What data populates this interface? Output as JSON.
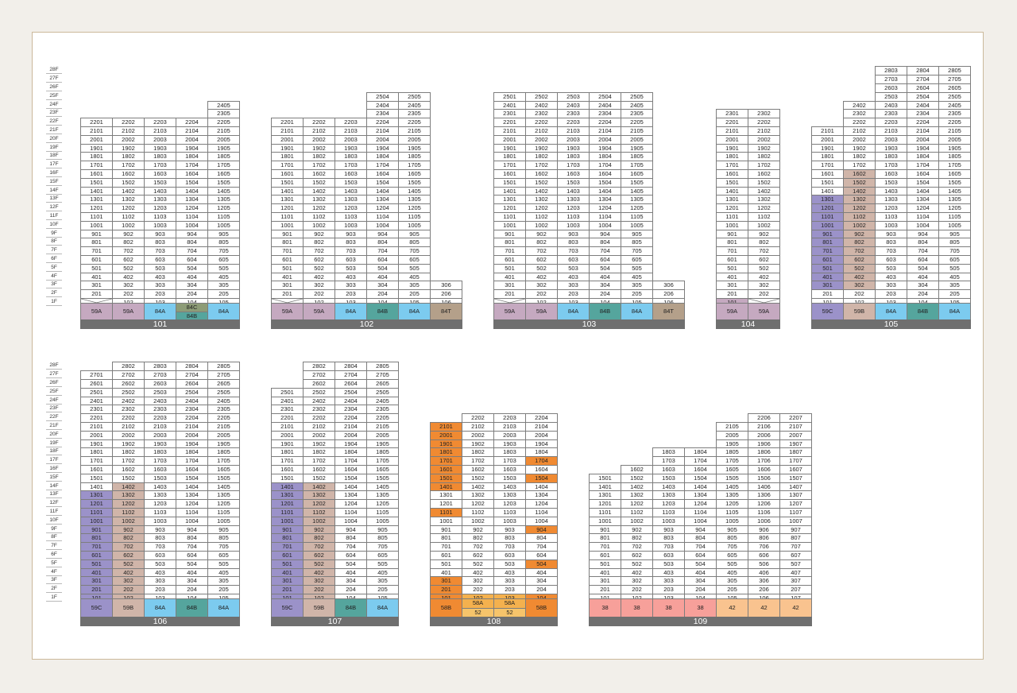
{
  "floors": [
    "28F",
    "27F",
    "26F",
    "25F",
    "24F",
    "23F",
    "22F",
    "21F",
    "20F",
    "19F",
    "18F",
    "17F",
    "16F",
    "15F",
    "14F",
    "13F",
    "12F",
    "11F",
    "10F",
    "9F",
    "8F",
    "7F",
    "6F",
    "5F",
    "4F",
    "3F",
    "2F",
    "1F"
  ],
  "colors": {
    "59A": "#c5a9c0",
    "59B": "#d0b5a9",
    "59C": "#9b92c9",
    "84A": "#7ccbef",
    "84B": "#55a59d",
    "84C": "#8d9c77",
    "84T": "#b4a08a",
    "58A": "#f4b14e",
    "58B": "#f08a32",
    "52": "#f6c46b",
    "38": "#f7a09a",
    "42": "#f9c38f",
    "u59A": "#c5a9c0",
    "u59B": "#d0b5a9",
    "u59C": "#9b92c9",
    "u58B": "#f08a32",
    "u58A": "#f4b14e",
    "ured": "#e9892c"
  },
  "buildings": [
    {
      "name": "101",
      "columns": [
        {
          "unit": "01",
          "top": 22,
          "bottom": 2,
          "one": "x",
          "type": "59A",
          "tcolor": "59A"
        },
        {
          "unit": "02",
          "top": 22,
          "bottom": 1,
          "type": "59A",
          "tcolor": "59A"
        },
        {
          "unit": "03",
          "top": 22,
          "bottom": 1,
          "type": "84A",
          "tcolor": "84A"
        },
        {
          "unit": "04",
          "top": 22,
          "bottom": 1,
          "type": "84C",
          "tcolor": "84C",
          "type2": "84B",
          "tcolor2": "84B"
        },
        {
          "unit": "05",
          "top": 24,
          "bottom": 1,
          "type": "84A",
          "tcolor": "84A"
        }
      ]
    },
    {
      "name": "102",
      "columns": [
        {
          "unit": "01",
          "top": 22,
          "bottom": 2,
          "one": "x",
          "type": "59A",
          "tcolor": "59A"
        },
        {
          "unit": "02",
          "top": 22,
          "bottom": 1,
          "type": "59A",
          "tcolor": "59A"
        },
        {
          "unit": "03",
          "top": 22,
          "bottom": 1,
          "type": "84A",
          "tcolor": "84A"
        },
        {
          "unit": "04",
          "top": 25,
          "bottom": 1,
          "type": "84B",
          "tcolor": "84B"
        },
        {
          "unit": "05",
          "top": 25,
          "bottom": 1,
          "type": "84A",
          "tcolor": "84A"
        },
        {
          "unit": "06",
          "top": 3,
          "bottom": 1,
          "type": "84T",
          "tcolor": "84T"
        }
      ]
    },
    {
      "name": "103",
      "columns": [
        {
          "unit": "01",
          "top": 25,
          "bottom": 2,
          "one": "x",
          "type": "59A",
          "tcolor": "59A"
        },
        {
          "unit": "02",
          "top": 25,
          "bottom": 1,
          "type": "59A",
          "tcolor": "59A"
        },
        {
          "unit": "03",
          "top": 25,
          "bottom": 1,
          "type": "84A",
          "tcolor": "84A"
        },
        {
          "unit": "04",
          "top": 25,
          "bottom": 1,
          "type": "84B",
          "tcolor": "84B"
        },
        {
          "unit": "05",
          "top": 25,
          "bottom": 1,
          "type": "84A",
          "tcolor": "84A"
        },
        {
          "unit": "06",
          "top": 3,
          "bottom": 1,
          "type": "84T",
          "tcolor": "84T"
        }
      ]
    },
    {
      "name": "104",
      "columns": [
        {
          "unit": "01",
          "top": 23,
          "bottom": 1,
          "type": "59A",
          "tcolor": "59A",
          "hl": {
            "1": "u59A"
          }
        },
        {
          "unit": "02",
          "top": 23,
          "bottom": 2,
          "one": "x",
          "type": "59A",
          "tcolor": "59A"
        }
      ]
    },
    {
      "name": "105",
      "columns": [
        {
          "unit": "01",
          "top": 21,
          "bottom": 1,
          "type": "59C",
          "tcolor": "59C",
          "hlr": [
            3,
            13,
            "u59C"
          ]
        },
        {
          "unit": "02",
          "top": 24,
          "bottom": 1,
          "type": "59B",
          "tcolor": "59B",
          "hlr": [
            3,
            16,
            "u59B"
          ]
        },
        {
          "unit": "03",
          "top": 28,
          "bottom": 1,
          "type": "84A",
          "tcolor": "84A"
        },
        {
          "unit": "04",
          "top": 28,
          "bottom": 1,
          "type": "84B",
          "tcolor": "84B"
        },
        {
          "unit": "05",
          "top": 28,
          "bottom": 1,
          "type": "84A",
          "tcolor": "84A"
        }
      ]
    },
    {
      "name": "106",
      "columns": [
        {
          "unit": "01",
          "top": 27,
          "bottom": 1,
          "type": "59C",
          "tcolor": "59C",
          "hlr": [
            1,
            13,
            "u59C"
          ]
        },
        {
          "unit": "02",
          "top": 28,
          "bottom": 1,
          "type": "59B",
          "tcolor": "59B",
          "hlr": [
            1,
            14,
            "u59B"
          ]
        },
        {
          "unit": "03",
          "top": 28,
          "bottom": 1,
          "type": "84A",
          "tcolor": "84A"
        },
        {
          "unit": "04",
          "top": 28,
          "bottom": 1,
          "type": "84B",
          "tcolor": "84B"
        },
        {
          "unit": "05",
          "top": 28,
          "bottom": 1,
          "type": "84A",
          "tcolor": "84A"
        }
      ]
    },
    {
      "name": "107",
      "columns": [
        {
          "unit": "01",
          "top": 25,
          "bottom": 1,
          "type": "59C",
          "tcolor": "59C",
          "hlr": [
            1,
            14,
            "u59C"
          ]
        },
        {
          "unit": "02",
          "top": 28,
          "bottom": 1,
          "type": "59B",
          "tcolor": "59B",
          "hlr": [
            1,
            14,
            "u59B"
          ]
        },
        {
          "unit": "04",
          "top": 28,
          "bottom": 1,
          "type": "84B",
          "tcolor": "84B"
        },
        {
          "unit": "05",
          "top": 28,
          "bottom": 1,
          "type": "84A",
          "tcolor": "84A"
        }
      ]
    },
    {
      "name": "108",
      "columns": [
        {
          "unit": "01",
          "top": 21,
          "bottom": 1,
          "type": "58B",
          "tcolor": "58B",
          "hl": {
            "1": "u58B",
            "2": "u58B",
            "3": "u58B",
            "11": "u58B",
            "14": "u58B",
            "15": "u58B",
            "16": "u58B",
            "17": "u58B",
            "18": "u58B",
            "19": "u58B",
            "20": "u58B",
            "21": "u58B"
          }
        },
        {
          "unit": "02",
          "top": 22,
          "bottom": 1,
          "type": "58A",
          "tcolor": "58A",
          "type2": "52",
          "tcolor2": "52",
          "hl": {
            "1": "u58A"
          }
        },
        {
          "unit": "03",
          "top": 22,
          "bottom": 1,
          "type": "58A",
          "tcolor": "58A",
          "type2": "52",
          "tcolor2": "52",
          "hl": {
            "1": "u58A"
          }
        },
        {
          "unit": "04",
          "top": 22,
          "bottom": 1,
          "type": "58B",
          "tcolor": "58B",
          "hl": {
            "1": "u58B",
            "5": "u58B",
            "9": "u58B",
            "15": "u58B",
            "17": "u58B"
          }
        }
      ]
    },
    {
      "name": "109",
      "columns": [
        {
          "unit": "01",
          "top": 15,
          "bottom": 1,
          "type": "38",
          "tcolor": "38"
        },
        {
          "unit": "02",
          "top": 16,
          "bottom": 1,
          "type": "38",
          "tcolor": "38"
        },
        {
          "unit": "03",
          "top": 18,
          "bottom": 1,
          "type": "38",
          "tcolor": "38"
        },
        {
          "unit": "04",
          "top": 18,
          "bottom": 1,
          "type": "38",
          "tcolor": "38"
        },
        {
          "unit": "05",
          "top": 21,
          "bottom": 1,
          "type": "42",
          "tcolor": "42"
        },
        {
          "unit": "06",
          "top": 22,
          "bottom": 1,
          "type": "42",
          "tcolor": "42"
        },
        {
          "unit": "07",
          "top": 22,
          "bottom": 1,
          "type": "42",
          "tcolor": "42"
        }
      ]
    }
  ]
}
